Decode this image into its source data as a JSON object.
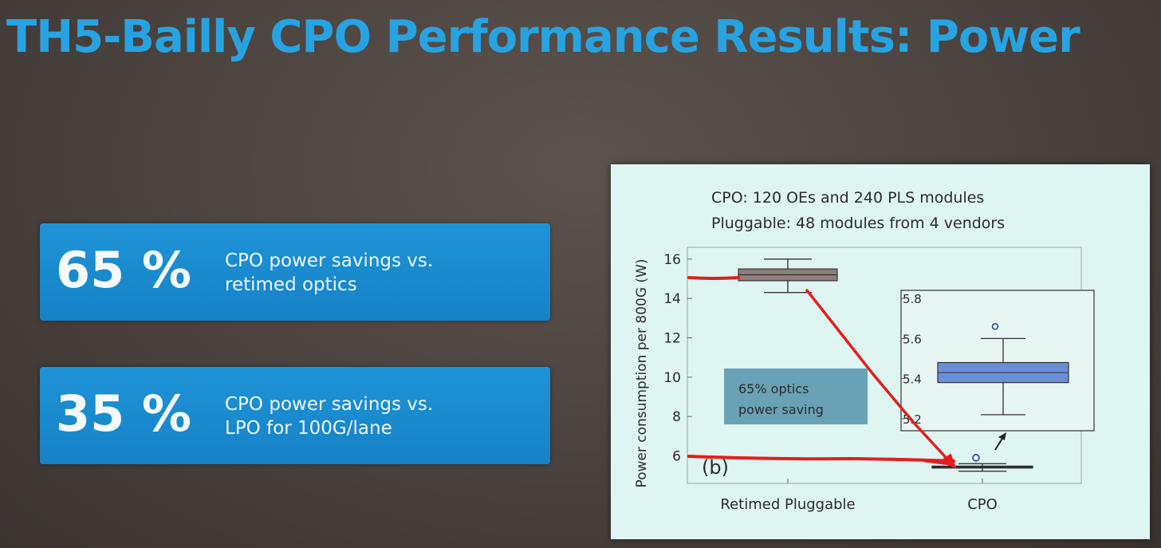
{
  "slide": {
    "title": "TH5-Bailly CPO Performance Results: Power",
    "stats": [
      {
        "value": "65 %",
        "line1": "CPO power savings vs.",
        "line2": "retimed optics"
      },
      {
        "value": "35 %",
        "line1": "CPO power savings vs.",
        "line2": "LPO for 100G/lane"
      }
    ]
  },
  "chart_data": {
    "type": "boxplot",
    "notes": [
      "CPO: 120 OEs and 240 PLS modules",
      "Pluggable: 48 modules from 4 vendors"
    ],
    "ylabel": "Power consumption per 800G (W)",
    "ylim": [
      4.6,
      16.6
    ],
    "yticks": [
      "6",
      "8",
      "10",
      "12",
      "14",
      "16"
    ],
    "categories": [
      "Retimed Pluggable",
      "CPO"
    ],
    "panel_label": "(b)",
    "annotation": {
      "line1": "65% optics",
      "line2": "power saving"
    },
    "boxes": [
      {
        "category": "Retimed Pluggable",
        "whisker_low": 14.3,
        "q1": 14.9,
        "median": 15.2,
        "q3": 15.5,
        "whisker_high": 16.0,
        "color": "#8f7e7e"
      },
      {
        "category": "CPO",
        "whisker_low": 5.22,
        "q1": 5.38,
        "median": 5.43,
        "q3": 5.48,
        "whisker_high": 5.6,
        "outlier": 5.66,
        "color": "#2a3fa0"
      }
    ],
    "inset": {
      "ylim": [
        5.14,
        5.84
      ],
      "yticks": [
        "5.2",
        "5.4",
        "5.6",
        "5.8"
      ]
    },
    "accent_red": "#e41e1e"
  }
}
